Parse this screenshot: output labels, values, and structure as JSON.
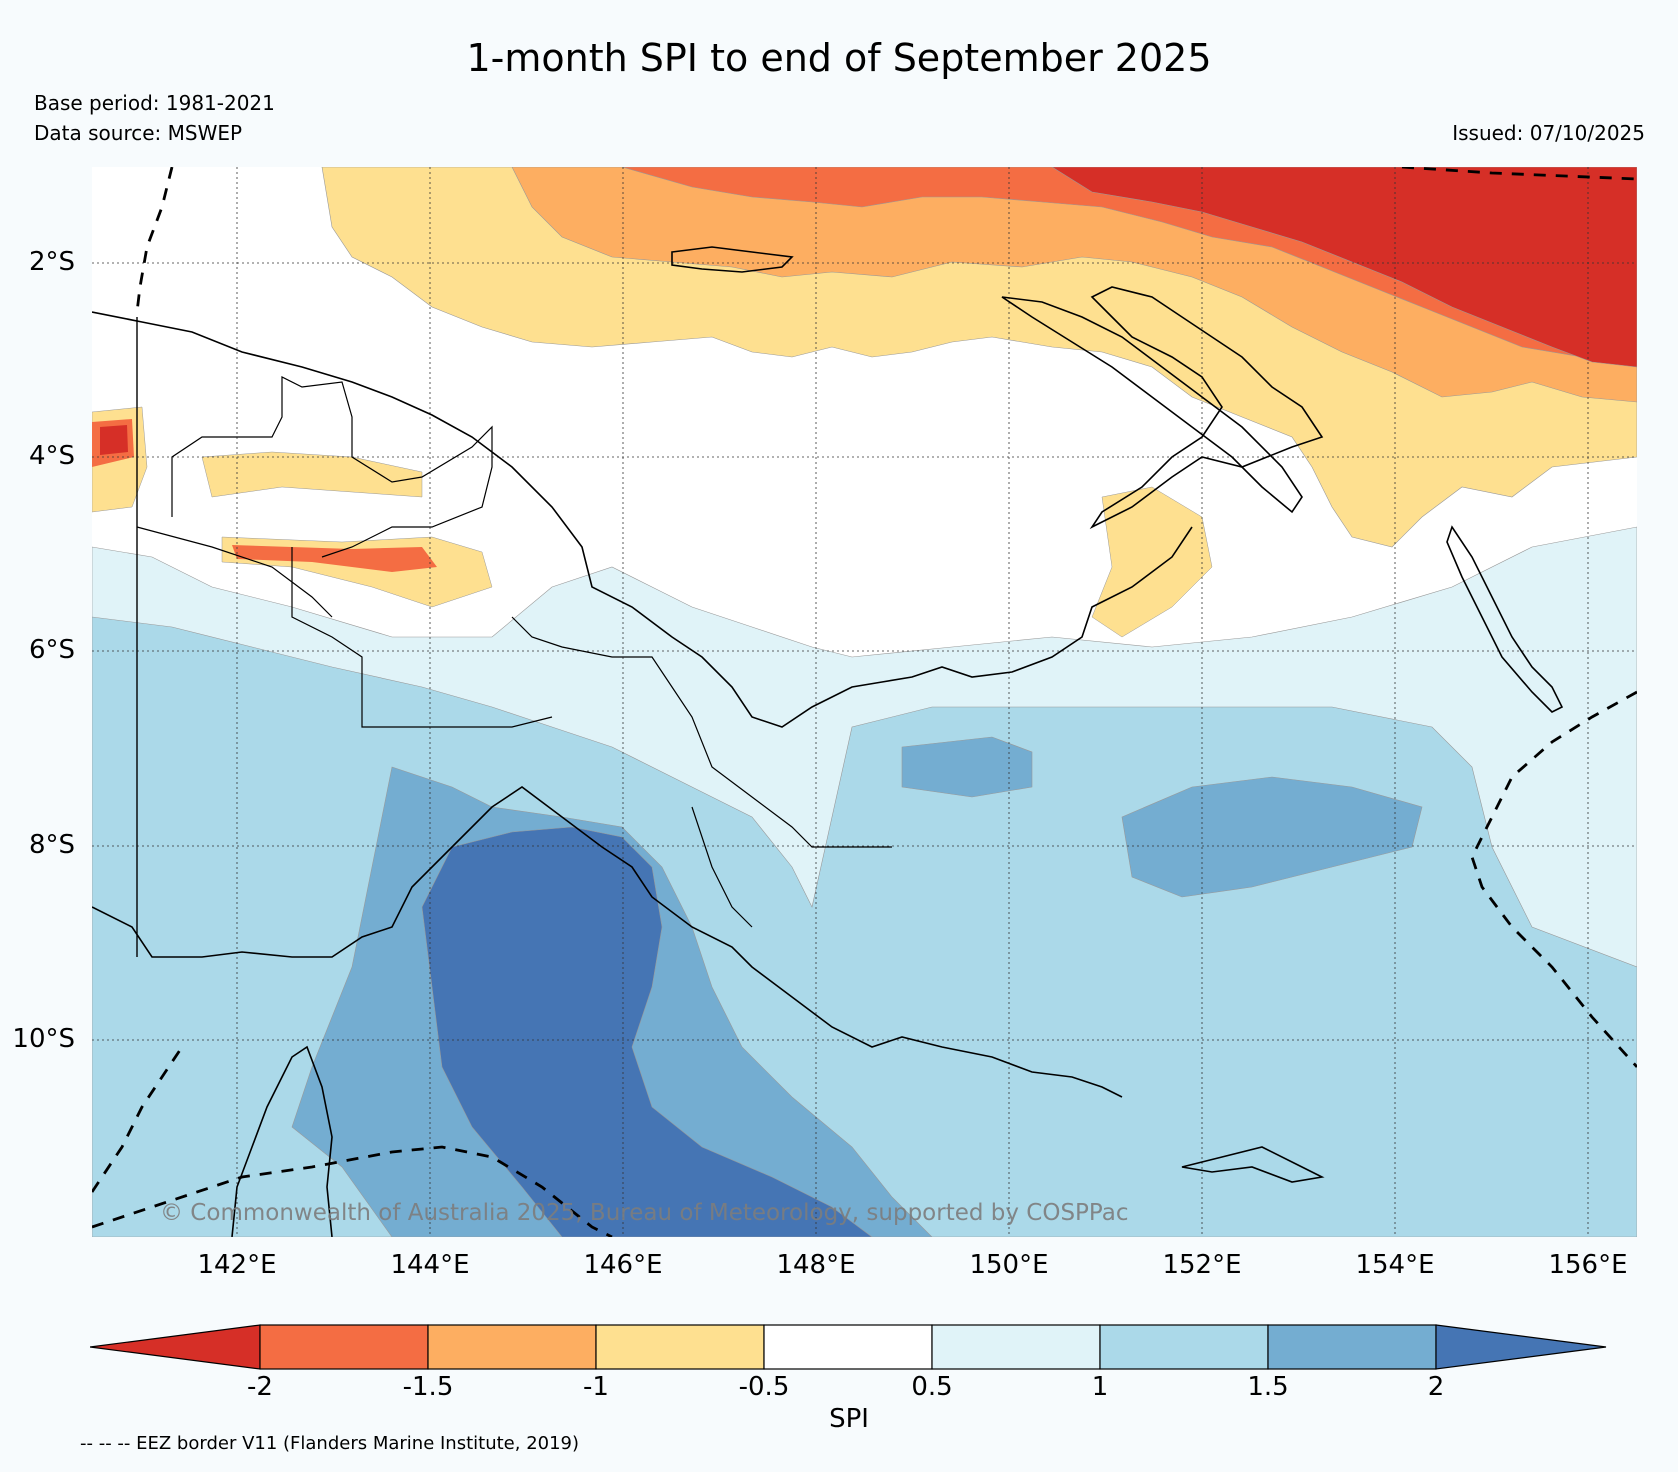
{
  "title": "1-month SPI to end of September 2025",
  "base_period": "Base period: 1981-2021",
  "data_source": "Data source: MSWEP",
  "issued": "Issued: 07/10/2025",
  "copyright": "© Commonwealth of Australia 2025, Bureau of Meteorology, supported by COSPPac",
  "eez_note": "-- -- -- EEZ border V11 (Flanders Marine Institute, 2019)",
  "latitude_labels": [
    "2°S",
    "4°S",
    "6°S",
    "8°S",
    "10°S"
  ],
  "longitude_labels": [
    "142°E",
    "144°E",
    "146°E",
    "148°E",
    "150°E",
    "152°E",
    "154°E",
    "156°E"
  ],
  "colorbar": {
    "title": "SPI",
    "ticks": [
      "-2",
      "-1.5",
      "-1",
      "-0.5",
      "0.5",
      "1",
      "1.5",
      "2"
    ],
    "colors": {
      "below_-2": "#d62f27",
      "-2_to_-1.5": "#f46d43",
      "-1.5_to_-1": "#fdae61",
      "-1_to_-0.5": "#fee090",
      "-0.5_to_0.5": "#ffffff",
      "0.5_to_1": "#e0f3f8",
      "1_to_1.5": "#abd9e9",
      "1.5_to_2": "#74add1",
      "above_2": "#4575b4"
    }
  },
  "map": {
    "extent": {
      "lon_min": 140.3,
      "lon_max": 156.5,
      "lat_min": -11.9,
      "lat_max": -1.0
    },
    "layers": [
      "SPI filled contours",
      "coastlines",
      "international borders",
      "provincial borders",
      "EEZ boundaries",
      "graticule"
    ]
  }
}
